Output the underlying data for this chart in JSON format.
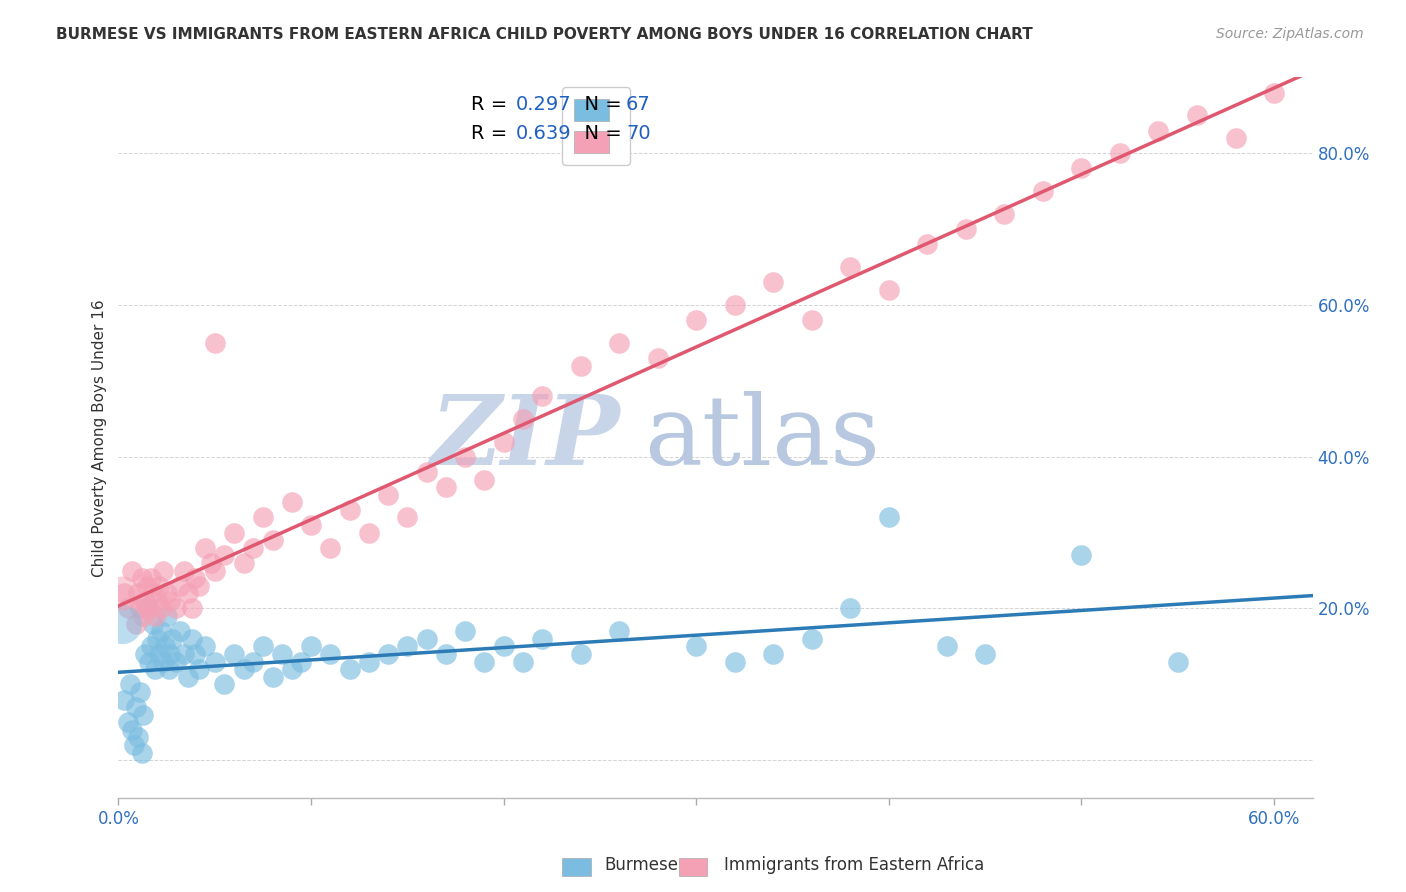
{
  "title": "BURMESE VS IMMIGRANTS FROM EASTERN AFRICA CHILD POVERTY AMONG BOYS UNDER 16 CORRELATION CHART",
  "source": "Source: ZipAtlas.com",
  "ylabel": "Child Poverty Among Boys Under 16",
  "xlim": [
    0.0,
    0.62
  ],
  "ylim": [
    -0.05,
    0.9
  ],
  "xtick_positions": [
    0.0,
    0.1,
    0.2,
    0.3,
    0.4,
    0.5,
    0.6
  ],
  "xticklabels": [
    "0.0%",
    "",
    "",
    "",
    "",
    "",
    "60.0%"
  ],
  "ytick_positions": [
    0.0,
    0.2,
    0.4,
    0.6,
    0.8
  ],
  "yticklabels": [
    "",
    "20.0%",
    "40.0%",
    "60.0%",
    "80.0%"
  ],
  "burmese_color": "#7bbde0",
  "eastern_africa_color": "#f4a0b5",
  "burmese_line_color": "#2c7bb6",
  "eastern_africa_line_color": "#e05870",
  "legend_R_burmese": "0.297",
  "legend_N_burmese": "67",
  "legend_R_eastern": "0.639",
  "legend_N_eastern": "70",
  "watermark_zip": "ZIP",
  "watermark_atlas": "atlas",
  "watermark_zip_color": "#c8d4e8",
  "watermark_atlas_color": "#b8c8e0",
  "background_color": "#ffffff",
  "grid_color": "#d4d4d4",
  "value_color": "#2060c0",
  "text_color": "#333333",
  "axis_label_color": "#3070c0",
  "title_fontsize": 11,
  "source_fontsize": 10,
  "tick_fontsize": 12,
  "legend_fontsize": 14
}
